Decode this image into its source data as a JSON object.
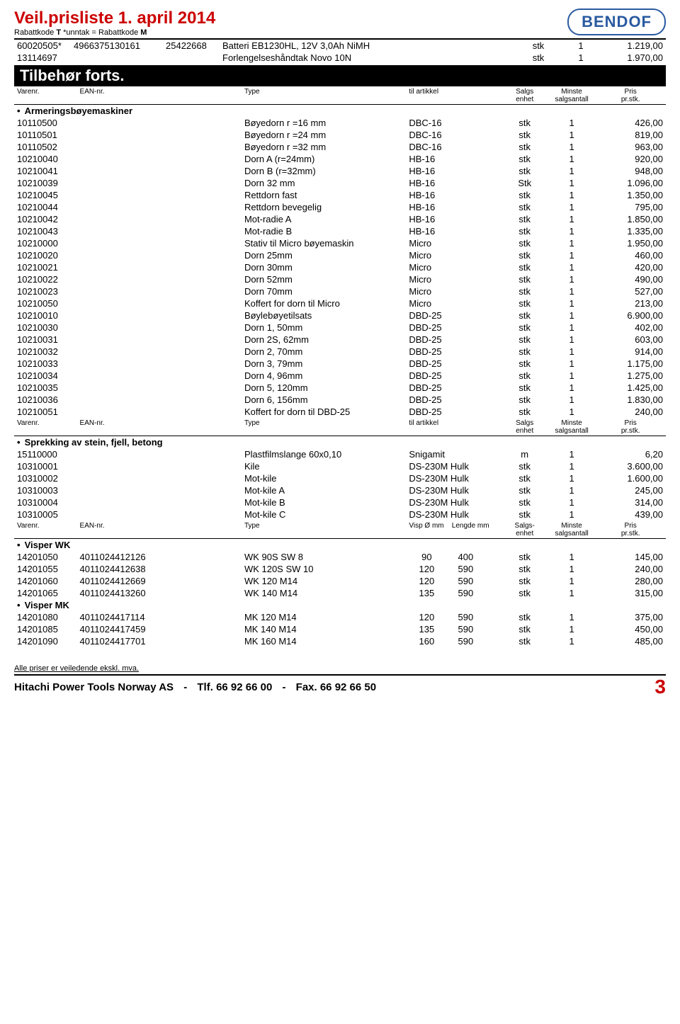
{
  "header": {
    "title": "Veil.prisliste 1. april 2014",
    "subtitle_prefix": "Rabattkode ",
    "subtitle_b1": "T",
    "subtitle_mid": "  *unntak = Rabattkode ",
    "subtitle_b2": "M",
    "logo": "BENDOF"
  },
  "top_rows": [
    {
      "varenr": "60020505*",
      "ean": "4966375130161",
      "code": "25422668",
      "type": "Batteri EB1230HL, 12V 3,0Ah NiMH",
      "art": "",
      "enhet": "stk",
      "antall": "1",
      "pris": "1.219,00"
    },
    {
      "varenr": "13114697",
      "ean": "",
      "code": "",
      "type": "Forlengelseshåndtak Novo 10N",
      "art": "",
      "enhet": "stk",
      "antall": "1",
      "pris": "1.970,00"
    }
  ],
  "section_title": "Tilbehør forts.",
  "col1": {
    "c1": "Varenr.",
    "c2": "EAN-nr.",
    "c4": "Type",
    "c5": "til artikkel",
    "c6a": "Salgs",
    "c6b": "enhet",
    "c7a": "Minste",
    "c7b": "salgsantall",
    "c8a": "Pris",
    "c8b": "pr.stk."
  },
  "group1": {
    "label": "Armeringsbøyemaskiner",
    "rows": [
      {
        "v": "10110500",
        "t": "Bøyedorn r =16 mm",
        "a": "DBC-16",
        "e": "stk",
        "n": "1",
        "p": "426,00"
      },
      {
        "v": "10110501",
        "t": "Bøyedorn r =24 mm",
        "a": "DBC-16",
        "e": "stk",
        "n": "1",
        "p": "819,00"
      },
      {
        "v": "10110502",
        "t": "Bøyedorn r =32 mm",
        "a": "DBC-16",
        "e": "stk",
        "n": "1",
        "p": "963,00"
      },
      {
        "v": "10210040",
        "t": "Dorn A (r=24mm)",
        "a": "HB-16",
        "e": "stk",
        "n": "1",
        "p": "920,00"
      },
      {
        "v": "10210041",
        "t": "Dorn B (r=32mm)",
        "a": "HB-16",
        "e": "stk",
        "n": "1",
        "p": "948,00"
      },
      {
        "v": "10210039",
        "t": "Dorn 32 mm",
        "a": "HB-16",
        "e": "Stk",
        "n": "1",
        "p": "1.096,00"
      },
      {
        "v": "10210045",
        "t": "Rettdorn fast",
        "a": "HB-16",
        "e": "stk",
        "n": "1",
        "p": "1.350,00"
      },
      {
        "v": "10210044",
        "t": "Rettdorn bevegelig",
        "a": "HB-16",
        "e": "stk",
        "n": "1",
        "p": "795,00"
      },
      {
        "v": "10210042",
        "t": "Mot-radie A",
        "a": "HB-16",
        "e": "stk",
        "n": "1",
        "p": "1.850,00"
      },
      {
        "v": "10210043",
        "t": "Mot-radie B",
        "a": "HB-16",
        "e": "stk",
        "n": "1",
        "p": "1.335,00"
      },
      {
        "v": "10210000",
        "t": "Stativ til Micro bøyemaskin",
        "a": "Micro",
        "e": "stk",
        "n": "1",
        "p": "1.950,00"
      },
      {
        "v": "10210020",
        "t": "Dorn 25mm",
        "a": "Micro",
        "e": "stk",
        "n": "1",
        "p": "460,00"
      },
      {
        "v": "10210021",
        "t": "Dorn 30mm",
        "a": "Micro",
        "e": "stk",
        "n": "1",
        "p": "420,00"
      },
      {
        "v": "10210022",
        "t": "Dorn 52mm",
        "a": "Micro",
        "e": "stk",
        "n": "1",
        "p": "490,00"
      },
      {
        "v": "10210023",
        "t": "Dorn 70mm",
        "a": "Micro",
        "e": "stk",
        "n": "1",
        "p": "527,00"
      },
      {
        "v": "10210050",
        "t": "Koffert for dorn til Micro",
        "a": "Micro",
        "e": "stk",
        "n": "1",
        "p": "213,00"
      },
      {
        "v": "10210010",
        "t": "Bøylebøyetilsats",
        "a": "DBD-25",
        "e": "stk",
        "n": "1",
        "p": "6.900,00"
      },
      {
        "v": "10210030",
        "t": "Dorn 1, 50mm",
        "a": "DBD-25",
        "e": "stk",
        "n": "1",
        "p": "402,00"
      },
      {
        "v": "10210031",
        "t": "Dorn 2S, 62mm",
        "a": "DBD-25",
        "e": "stk",
        "n": "1",
        "p": "603,00"
      },
      {
        "v": "10210032",
        "t": "Dorn 2, 70mm",
        "a": "DBD-25",
        "e": "stk",
        "n": "1",
        "p": "914,00"
      },
      {
        "v": "10210033",
        "t": "Dorn 3, 79mm",
        "a": "DBD-25",
        "e": "stk",
        "n": "1",
        "p": "1.175,00"
      },
      {
        "v": "10210034",
        "t": "Dorn 4, 96mm",
        "a": "DBD-25",
        "e": "stk",
        "n": "1",
        "p": "1.275,00"
      },
      {
        "v": "10210035",
        "t": "Dorn 5, 120mm",
        "a": "DBD-25",
        "e": "stk",
        "n": "1",
        "p": "1.425,00"
      },
      {
        "v": "10210036",
        "t": "Dorn 6, 156mm",
        "a": "DBD-25",
        "e": "stk",
        "n": "1",
        "p": "1.830,00"
      },
      {
        "v": "10210051",
        "t": "Koffert for dorn til DBD-25",
        "a": "DBD-25",
        "e": "stk",
        "n": "1",
        "p": "240,00"
      }
    ]
  },
  "group2": {
    "label": "Sprekking av stein, fjell, betong",
    "rows": [
      {
        "v": "15110000",
        "t": "Plastfilmslange 60x0,10",
        "a": "Snigamit",
        "e": "m",
        "n": "1",
        "p": "6,20"
      },
      {
        "v": "10310001",
        "t": "Kile",
        "a": "DS-230M Hulk",
        "e": "stk",
        "n": "1",
        "p": "3.600,00"
      },
      {
        "v": "10310002",
        "t": "Mot-kile",
        "a": "DS-230M Hulk",
        "e": "stk",
        "n": "1",
        "p": "1.600,00"
      },
      {
        "v": "10310003",
        "t": "Mot-kile A",
        "a": "DS-230M Hulk",
        "e": "stk",
        "n": "1",
        "p": "245,00"
      },
      {
        "v": "10310004",
        "t": "Mot-kile B",
        "a": "DS-230M Hulk",
        "e": "stk",
        "n": "1",
        "p": "314,00"
      },
      {
        "v": "10310005",
        "t": "Mot-kile C",
        "a": "DS-230M Hulk",
        "e": "stk",
        "n": "1",
        "p": "439,00"
      }
    ]
  },
  "col3": {
    "c1": "Varenr.",
    "c2": "EAN-nr.",
    "c4": "Type",
    "c5a": "Visp Ø mm",
    "c5b": "Lengde mm",
    "c6a": "Salgs-",
    "c6b": "enhet",
    "c7a": "Minste",
    "c7b": "salgsantall",
    "c8a": "Pris",
    "c8b": "pr.stk."
  },
  "group3": {
    "label": "Visper WK",
    "rows": [
      {
        "v": "14201050",
        "e2": "4011024412126",
        "t": "WK 90S SW 8",
        "d": "90",
        "l": "400",
        "e": "stk",
        "n": "1",
        "p": "145,00"
      },
      {
        "v": "14201055",
        "e2": "4011024412638",
        "t": "WK 120S SW 10",
        "d": "120",
        "l": "590",
        "e": "stk",
        "n": "1",
        "p": "240,00"
      },
      {
        "v": "14201060",
        "e2": "4011024412669",
        "t": "WK 120 M14",
        "d": "120",
        "l": "590",
        "e": "stk",
        "n": "1",
        "p": "280,00"
      },
      {
        "v": "14201065",
        "e2": "4011024413260",
        "t": "WK 140 M14",
        "d": "135",
        "l": "590",
        "e": "stk",
        "n": "1",
        "p": "315,00"
      }
    ]
  },
  "group4": {
    "label": "Visper MK",
    "rows": [
      {
        "v": "14201080",
        "e2": "4011024417114",
        "t": "MK 120 M14",
        "d": "120",
        "l": "590",
        "e": "stk",
        "n": "1",
        "p": "375,00"
      },
      {
        "v": "14201085",
        "e2": "4011024417459",
        "t": "MK 140 M14",
        "d": "135",
        "l": "590",
        "e": "stk",
        "n": "1",
        "p": "450,00"
      },
      {
        "v": "14201090",
        "e2": "4011024417701",
        "t": "MK 160 M14",
        "d": "160",
        "l": "590",
        "e": "stk",
        "n": "1",
        "p": "485,00"
      }
    ]
  },
  "footer": {
    "note": "Alle priser er veiledende ekskl. mva.",
    "company": "Hitachi Power Tools Norway AS",
    "tlf_label": "Tlf. ",
    "tlf": "66 92 66 00",
    "fax_label": "Fax. ",
    "fax": "66 92 66 50",
    "page": "3"
  },
  "style": {
    "accent": "#cc0000",
    "logo_border": "#2a5aa0"
  }
}
